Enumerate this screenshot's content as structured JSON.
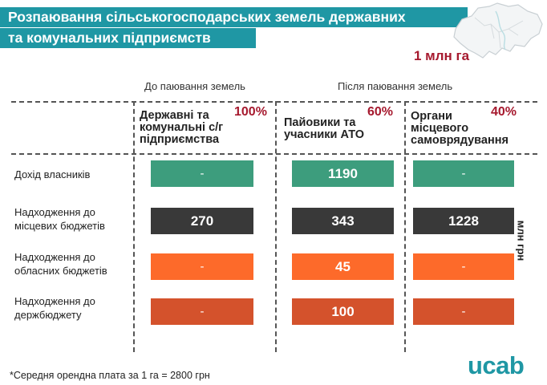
{
  "title": {
    "line1": "Розпаювання сільськогосподарських земель державних",
    "line2": "та комунальних підприємств"
  },
  "area": "1 млн га",
  "unit": "млн грн",
  "group_headers": {
    "before": "До паювання земель",
    "after": "Після паювання земель"
  },
  "chart_data": {
    "type": "table",
    "title": "Розпаювання сільськогосподарських земель державних та комунальних підприємств",
    "columns": [
      {
        "title_lines": [
          "Державні та",
          "комунальні с/г",
          "підприємства"
        ],
        "share": "100%"
      },
      {
        "title_lines": [
          "Пайовики та",
          "учасники АТО"
        ],
        "share": "60%"
      },
      {
        "title_lines": [
          "Органи",
          "місцевого",
          "самоврядування"
        ],
        "share": "40%"
      }
    ],
    "rows": [
      {
        "label_lines": [
          "Дохід власників"
        ],
        "color": "#3d9d7d",
        "values": [
          "-",
          "1190",
          "-"
        ]
      },
      {
        "label_lines": [
          "Надходження до",
          "місцевих бюджетів"
        ],
        "color": "#393939",
        "values": [
          "270",
          "343",
          "1228"
        ]
      },
      {
        "label_lines": [
          "Надходження до",
          "обласних бюджетів"
        ],
        "color": "#fd6a2a",
        "values": [
          "-",
          "45",
          "-"
        ]
      },
      {
        "label_lines": [
          "Надходження до",
          "держбюджету"
        ],
        "color": "#d4522c",
        "values": [
          "-",
          "100",
          "-"
        ]
      }
    ]
  },
  "footnote": "*Середня орендна плата за 1 га = 2800 грн",
  "logo": "ucab"
}
